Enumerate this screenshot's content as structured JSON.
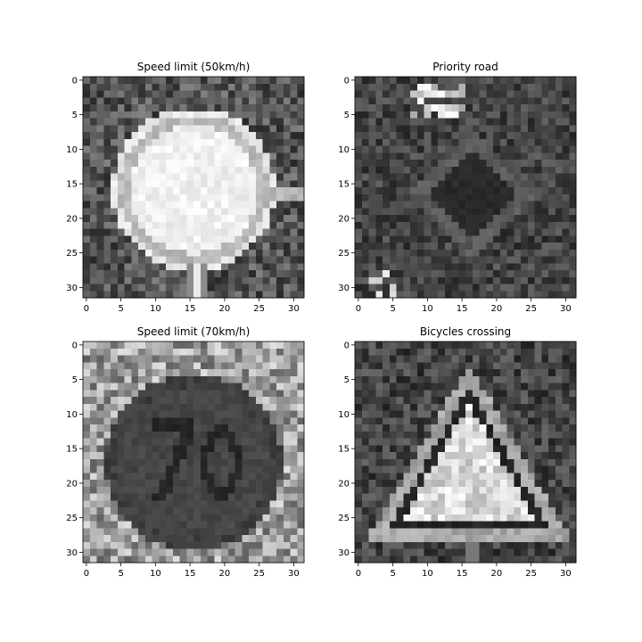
{
  "chart_data": [
    {
      "type": "heatmap",
      "title": "Speed limit (50km/h)",
      "image_shape": [
        32,
        32
      ],
      "colormap": "gray",
      "xticks": [
        0,
        5,
        10,
        15,
        20,
        25,
        30
      ],
      "yticks": [
        0,
        5,
        10,
        15,
        20,
        25,
        30
      ],
      "xlim": [
        -0.5,
        31.5
      ],
      "ylim": [
        31.5,
        -0.5
      ],
      "depicts": "white circular sign with gray ring, post below",
      "pattern": "circle-sign"
    },
    {
      "type": "heatmap",
      "title": "Priority road",
      "image_shape": [
        32,
        32
      ],
      "colormap": "gray",
      "xticks": [
        0,
        5,
        10,
        15,
        20,
        25,
        30
      ],
      "yticks": [
        0,
        5,
        10,
        15,
        20,
        25,
        30
      ],
      "xlim": [
        -0.5,
        31.5
      ],
      "ylim": [
        31.5,
        -0.5
      ],
      "depicts": "dark diamond sign with lighter outline, bright spots upper left",
      "pattern": "diamond-sign"
    },
    {
      "type": "heatmap",
      "title": "Speed limit (70km/h)",
      "image_shape": [
        32,
        32
      ],
      "colormap": "gray",
      "xticks": [
        0,
        5,
        10,
        15,
        20,
        25,
        30
      ],
      "yticks": [
        0,
        5,
        10,
        15,
        20,
        25,
        30
      ],
      "xlim": [
        -0.5,
        31.5
      ],
      "ylim": [
        31.5,
        -0.5
      ],
      "depicts": "dark circular sign with digits 70 on bright mottled background",
      "pattern": "dark-circle-70"
    },
    {
      "type": "heatmap",
      "title": "Bicycles crossing",
      "image_shape": [
        32,
        32
      ],
      "colormap": "gray",
      "xticks": [
        0,
        5,
        10,
        15,
        20,
        25,
        30
      ],
      "yticks": [
        0,
        5,
        10,
        15,
        20,
        25,
        30
      ],
      "xlim": [
        -0.5,
        31.5
      ],
      "ylim": [
        31.5,
        -0.5
      ],
      "depicts": "triangular warning sign with light interior and gray border",
      "pattern": "triangle-sign"
    }
  ]
}
